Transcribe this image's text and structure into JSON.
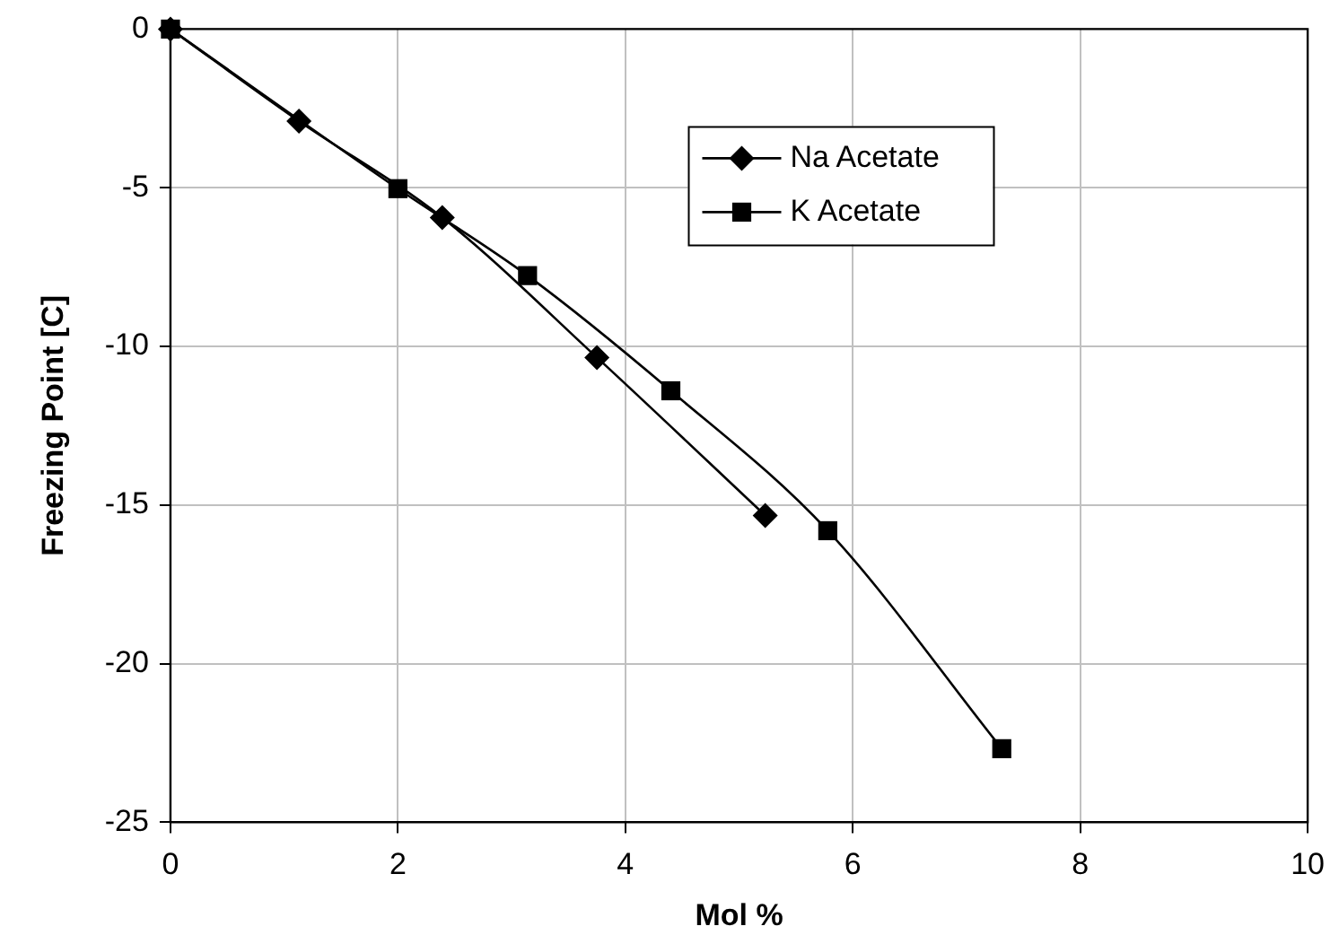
{
  "chart_data": {
    "type": "line",
    "xlabel": "Mol %",
    "ylabel": "Freezing Point [C]",
    "xlim": [
      0,
      10
    ],
    "xticks": [
      0,
      2,
      4,
      6,
      8,
      10
    ],
    "ylim": [
      -25,
      0
    ],
    "yticks": [
      -25,
      -20,
      -15,
      -10,
      -5,
      0
    ],
    "grid": true,
    "legend": "top right",
    "series": [
      {
        "name": "Na Acetate",
        "color": "#000000",
        "marker": "diamond",
        "x": [
          0,
          1.13,
          2.39,
          3.75,
          5.23
        ],
        "values": [
          0,
          -2.9,
          -5.94,
          -10.35,
          -15.33
        ]
      },
      {
        "name": "K Acetate",
        "color": "#000000",
        "marker": "square",
        "x": [
          0,
          2.0,
          3.14,
          4.4,
          5.78,
          7.31
        ],
        "values": [
          0,
          -5.03,
          -7.77,
          -11.4,
          -15.81,
          -22.68
        ]
      }
    ]
  }
}
